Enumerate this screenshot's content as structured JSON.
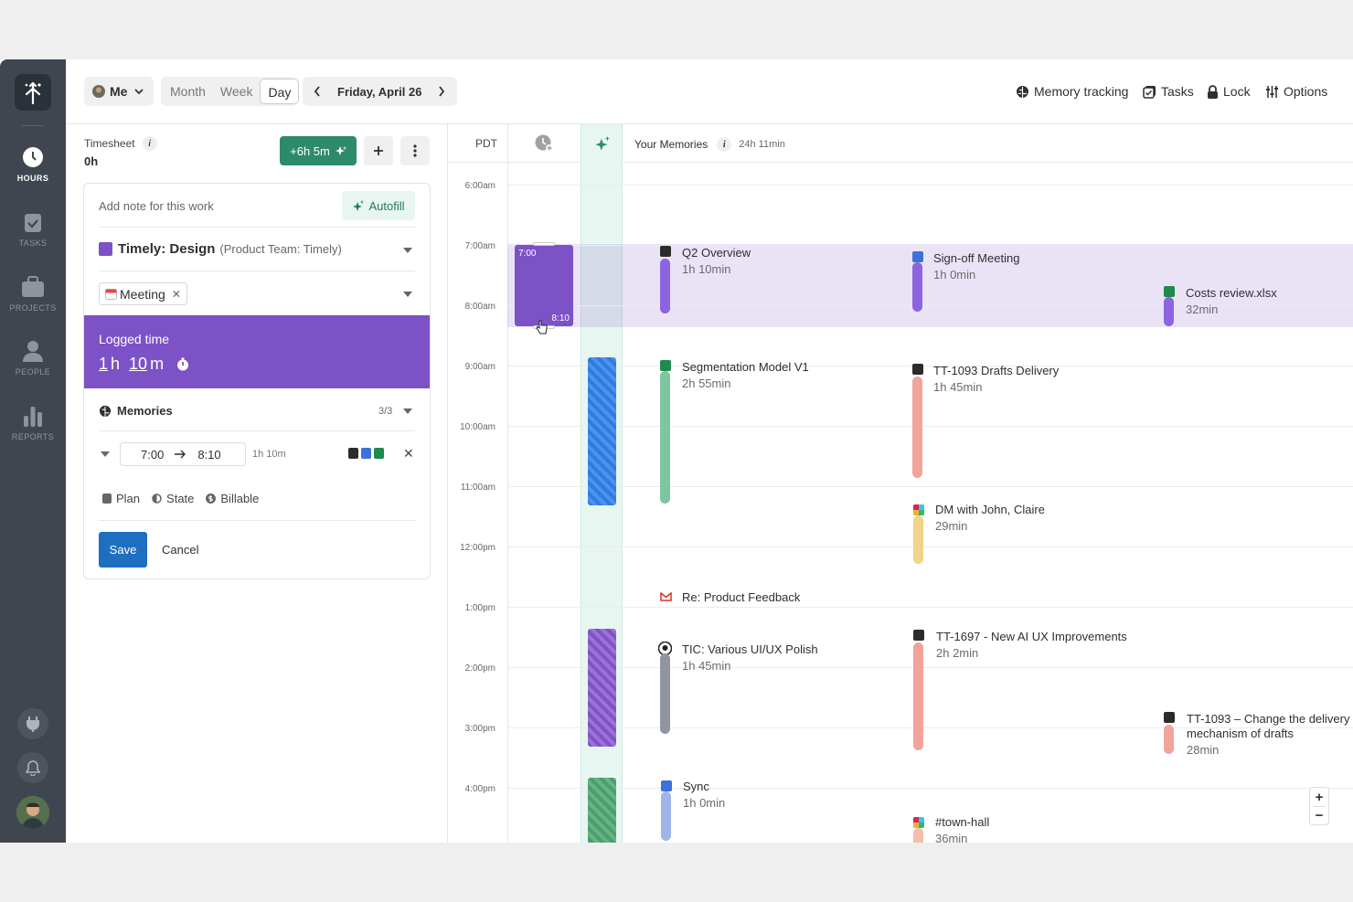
{
  "sidebar": {
    "items": [
      {
        "label": "HOURS",
        "icon": "clock-icon"
      },
      {
        "label": "TASKS",
        "icon": "clipboard-check-icon"
      },
      {
        "label": "PROJECTS",
        "icon": "briefcase-icon"
      },
      {
        "label": "PEOPLE",
        "icon": "person-icon"
      },
      {
        "label": "REPORTS",
        "icon": "bar-chart-icon"
      }
    ]
  },
  "topbar": {
    "user": "Me",
    "views": [
      "Month",
      "Week",
      "Day"
    ],
    "selected_view": "Day",
    "date": "Friday, April 26",
    "actions": {
      "memory": "Memory tracking",
      "tasks": "Tasks",
      "lock": "Lock",
      "options": "Options"
    }
  },
  "timesheet": {
    "label": "Timesheet",
    "value": "0h",
    "suggest": "+6h 5m"
  },
  "form": {
    "note_placeholder": "Add note for this work",
    "autofill": "Autofill",
    "project": "Timely: Design",
    "project_sub": "(Product Team: Timely)",
    "tag": "Meeting",
    "logged_label": "Logged time",
    "logged_h": "1",
    "logged_h_unit": "h",
    "logged_m": "10",
    "logged_m_unit": "m",
    "memories_label": "Memories",
    "memories_count": "3/3",
    "mem_from": "7:00",
    "mem_to": "8:10",
    "mem_dur": "1h 10m",
    "plan": "Plan",
    "state": "State",
    "billable": "Billable",
    "save": "Save",
    "cancel": "Cancel"
  },
  "calendar": {
    "tz": "PDT",
    "memories_label": "Your Memories",
    "memories_total": "24h 11min",
    "times": [
      "6:00am",
      "7:00am",
      "8:00am",
      "9:00am",
      "10:00am",
      "11:00am",
      "12:00pm",
      "1:00pm",
      "2:00pm",
      "3:00pm",
      "4:00pm"
    ],
    "entry_start": "7:00",
    "entry_end": "8:10",
    "colors": {
      "purple": "#7c52c6",
      "green_btn": "#2e8b6a",
      "save_blue": "#1f6fc0"
    },
    "events": [
      {
        "title": "Q2 Overview",
        "dur": "1h 10min"
      },
      {
        "title": "Sign-off Meeting",
        "dur": "1h 0min"
      },
      {
        "title": "Costs review.xlsx",
        "dur": "32min"
      },
      {
        "title": "Segmentation Model V1",
        "dur": "2h 55min"
      },
      {
        "title": "TT-1093 Drafts Delivery",
        "dur": "1h 45min"
      },
      {
        "title": "DM with John, Claire",
        "dur": "29min"
      },
      {
        "title": "Re: Product Feedback",
        "dur": ""
      },
      {
        "title": "TIC: Various UI/UX Polish",
        "dur": "1h 45min"
      },
      {
        "title": "TT-1697 - New AI UX Improvements",
        "dur": "2h 2min"
      },
      {
        "title": "TT-1093 – Change the delivery",
        "title2": "mechanism of drafts",
        "dur": "28min"
      },
      {
        "title": "Sync",
        "dur": "1h 0min"
      },
      {
        "title": "#town-hall",
        "dur": "36min"
      }
    ]
  }
}
